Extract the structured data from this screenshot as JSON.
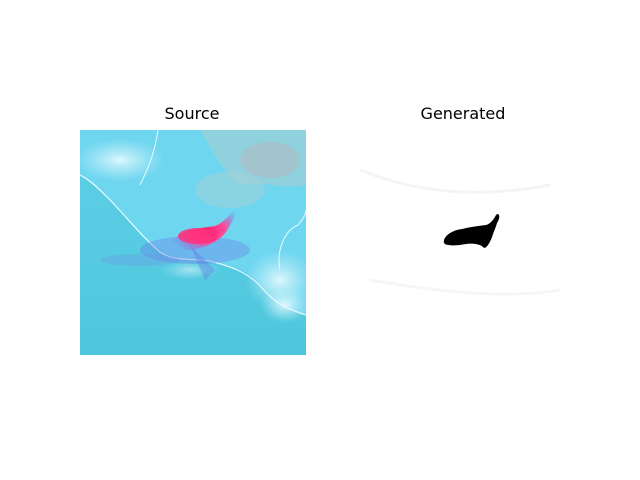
{
  "figure": {
    "panels": [
      {
        "title": "Source"
      },
      {
        "title": "Generated"
      }
    ]
  },
  "colors": {
    "ocean": "#52cde0",
    "land": "#6fd6f0",
    "cloud": "#bfeef6",
    "plume": "#ff2f7a",
    "mask": "#000000",
    "background": "#ffffff"
  }
}
